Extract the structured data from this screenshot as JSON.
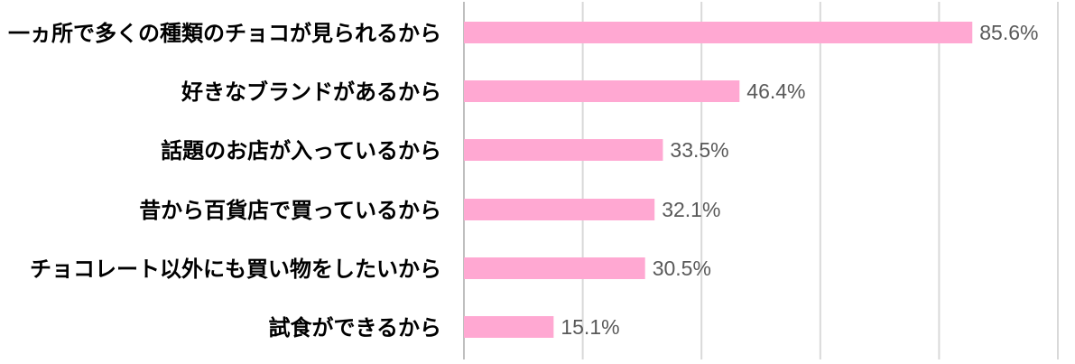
{
  "chart_data": {
    "type": "bar",
    "orientation": "horizontal",
    "categories": [
      "一ヵ所で多くの種類のチョコが見られるから",
      "好きなブランドがあるから",
      "話題のお店が入っているから",
      "昔から百貨店で買っているから",
      "チョコレート以外にも買い物をしたいから",
      "試食ができるから"
    ],
    "values": [
      85.6,
      46.4,
      33.5,
      32.1,
      30.5,
      15.1
    ],
    "value_labels": [
      "85.6%",
      "46.4%",
      "33.5%",
      "32.1%",
      "30.5%",
      "15.1%"
    ],
    "xlim": [
      0,
      100
    ],
    "grid": true,
    "legend": "none",
    "title": "",
    "xlabel": "",
    "ylabel": "",
    "colors": {
      "bar": "#ffa8d2"
    }
  }
}
